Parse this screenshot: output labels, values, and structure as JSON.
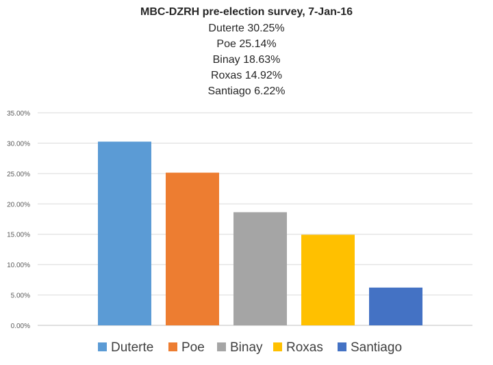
{
  "chart_data": {
    "type": "bar",
    "title": "MBC-DZRH pre-election survey, 7-Jan-16",
    "subtitle_lines": [
      "Duterte 30.25%",
      "Poe 25.14%",
      "Binay 18.63%",
      "Roxas 14.92%",
      "Santiago 6.22%"
    ],
    "categories": [
      "Duterte",
      "Poe",
      "Binay",
      "Roxas",
      "Santiago"
    ],
    "values": [
      30.25,
      25.14,
      18.63,
      14.92,
      6.22
    ],
    "colors": [
      "#5b9bd5",
      "#ed7d31",
      "#a5a5a5",
      "#ffc000",
      "#4472c4"
    ],
    "ylim": [
      0,
      35
    ],
    "yticks": [
      "0.00%",
      "5.00%",
      "10.00%",
      "15.00%",
      "20.00%",
      "25.00%",
      "30.00%",
      "35.00%"
    ],
    "grid": true,
    "legend_position": "bottom",
    "xlabel": "",
    "ylabel": ""
  }
}
